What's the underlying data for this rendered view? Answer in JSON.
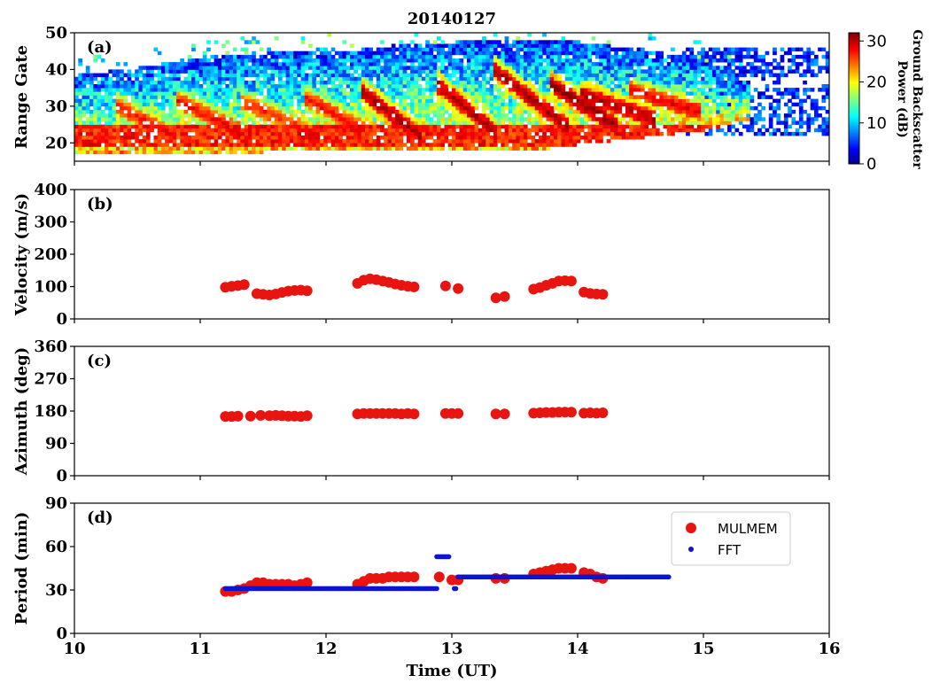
{
  "figure": {
    "title": "20140127",
    "xlabel": "Time (UT)",
    "xticks": [
      "10",
      "11",
      "12",
      "13",
      "14",
      "15",
      "16"
    ],
    "xlim": [
      10,
      16
    ]
  },
  "chart_data": [
    {
      "panel": "(a)",
      "type": "heatmap",
      "ylabel": "Range Gate",
      "ylim": [
        15,
        50
      ],
      "yticks": [
        20,
        30,
        40,
        50
      ],
      "xlim": [
        10,
        16
      ],
      "colorbar": {
        "label_line1": "Ground Backscatter",
        "label_line2": "Power (dB)",
        "range": [
          0,
          32
        ],
        "ticks": [
          0,
          10,
          20,
          30
        ],
        "colormap": "jet"
      },
      "description": "Ground backscatter power (dB) vs time and range gate; values estimated from color",
      "features": {
        "bottom_band": {
          "t_start": 10.0,
          "t_end": 15.1,
          "gate_low": 19,
          "gate_high": 24,
          "power_db": 30
        },
        "coverage": [
          {
            "t": 10.0,
            "gate_low": 17,
            "gate_high": 38
          },
          {
            "t": 10.5,
            "gate_low": 17,
            "gate_high": 40
          },
          {
            "t": 11.0,
            "gate_low": 17,
            "gate_high": 43
          },
          {
            "t": 11.5,
            "gate_low": 17,
            "gate_high": 44
          },
          {
            "t": 12.0,
            "gate_low": 18,
            "gate_high": 44
          },
          {
            "t": 12.5,
            "gate_low": 18,
            "gate_high": 46
          },
          {
            "t": 13.0,
            "gate_low": 18,
            "gate_high": 47
          },
          {
            "t": 13.5,
            "gate_low": 17,
            "gate_high": 47
          },
          {
            "t": 14.0,
            "gate_low": 19,
            "gate_high": 47
          },
          {
            "t": 14.5,
            "gate_low": 21,
            "gate_high": 45
          },
          {
            "t": 15.0,
            "gate_low": 23,
            "gate_high": 42
          },
          {
            "t": 15.3,
            "gate_low": 26,
            "gate_high": 36
          }
        ],
        "tilted_streaks": [
          {
            "t0": 10.3,
            "g0": 30,
            "t1": 10.8,
            "g1": 21,
            "power_db": 28
          },
          {
            "t0": 10.8,
            "g0": 31,
            "t1": 11.4,
            "g1": 21,
            "power_db": 28
          },
          {
            "t0": 11.3,
            "g0": 31,
            "t1": 11.9,
            "g1": 22,
            "power_db": 27
          },
          {
            "t0": 11.8,
            "g0": 32,
            "t1": 12.3,
            "g1": 23,
            "power_db": 28
          },
          {
            "t0": 12.25,
            "g0": 34,
            "t1": 12.75,
            "g1": 21,
            "power_db": 31
          },
          {
            "t0": 12.85,
            "g0": 36,
            "t1": 13.35,
            "g1": 22,
            "power_db": 31
          },
          {
            "t0": 13.3,
            "g0": 40,
            "t1": 13.9,
            "g1": 24,
            "power_db": 31
          },
          {
            "t0": 13.75,
            "g0": 36,
            "t1": 14.3,
            "g1": 24,
            "power_db": 32
          },
          {
            "t0": 14.0,
            "g0": 33,
            "t1": 14.6,
            "g1": 26,
            "power_db": 31
          },
          {
            "t0": 14.4,
            "g0": 34,
            "t1": 14.95,
            "g1": 28,
            "power_db": 29
          }
        ],
        "low_power_region": {
          "t_start": 14.8,
          "t_end": 16.0,
          "gate_low": 22,
          "gate_high": 45,
          "power_db": 4
        }
      }
    },
    {
      "panel": "(b)",
      "type": "scatter",
      "ylabel": "Velocity (m/s)",
      "ylim": [
        0,
        400
      ],
      "yticks": [
        0,
        100,
        200,
        300,
        400
      ],
      "series": [
        {
          "color": "#e8140f",
          "x": [
            11.2,
            11.25,
            11.3,
            11.35,
            11.45,
            11.5,
            11.55,
            11.6,
            11.65,
            11.7,
            11.75,
            11.8,
            11.85,
            12.25,
            12.3,
            12.35,
            12.4,
            12.45,
            12.5,
            12.55,
            12.6,
            12.65,
            12.7,
            12.95,
            13.05,
            13.35,
            13.42,
            13.65,
            13.7,
            13.75,
            13.8,
            13.85,
            13.9,
            13.95,
            14.05,
            14.1,
            14.15,
            14.2
          ],
          "y": [
            98,
            101,
            103,
            106,
            78,
            76,
            74,
            77,
            82,
            86,
            88,
            89,
            87,
            110,
            120,
            124,
            121,
            117,
            113,
            108,
            104,
            101,
            99,
            102,
            94,
            65,
            69,
            92,
            97,
            104,
            110,
            117,
            118,
            117,
            83,
            79,
            77,
            76
          ]
        }
      ]
    },
    {
      "panel": "(c)",
      "type": "scatter",
      "ylabel": "Azimuth (deg)",
      "ylim": [
        0,
        360
      ],
      "yticks": [
        0,
        90,
        180,
        270,
        360
      ],
      "series": [
        {
          "color": "#e8140f",
          "x": [
            11.2,
            11.25,
            11.3,
            11.4,
            11.48,
            11.55,
            11.6,
            11.65,
            11.7,
            11.75,
            11.8,
            11.85,
            12.25,
            12.3,
            12.35,
            12.4,
            12.45,
            12.5,
            12.55,
            12.6,
            12.65,
            12.7,
            12.95,
            13.0,
            13.05,
            13.35,
            13.42,
            13.65,
            13.7,
            13.75,
            13.8,
            13.85,
            13.9,
            13.95,
            14.05,
            14.1,
            14.15,
            14.2
          ],
          "y": [
            165,
            165,
            166,
            166,
            168,
            167,
            168,
            167,
            166,
            166,
            165,
            167,
            172,
            173,
            173,
            173,
            173,
            173,
            173,
            172,
            173,
            172,
            173,
            173,
            173,
            172,
            172,
            174,
            175,
            176,
            176,
            177,
            177,
            177,
            174,
            175,
            174,
            175
          ]
        }
      ]
    },
    {
      "panel": "(d)",
      "type": "scatter",
      "ylabel": "Period (min)",
      "ylim": [
        0,
        90
      ],
      "yticks": [
        0,
        30,
        60,
        90
      ],
      "legend": {
        "position": "top-right",
        "entries": [
          "MULMEM",
          "FFT"
        ]
      },
      "series": [
        {
          "name": "MULMEM",
          "color": "#e8140f",
          "x": [
            11.2,
            11.25,
            11.3,
            11.35,
            11.4,
            11.45,
            11.5,
            11.55,
            11.6,
            11.65,
            11.7,
            11.75,
            11.8,
            11.85,
            12.25,
            12.3,
            12.35,
            12.4,
            12.45,
            12.5,
            12.55,
            12.6,
            12.65,
            12.7,
            12.9,
            13.0,
            13.05,
            13.35,
            13.42,
            13.65,
            13.7,
            13.75,
            13.8,
            13.85,
            13.9,
            13.95,
            14.05,
            14.1,
            14.15,
            14.2
          ],
          "y": [
            29,
            29,
            30,
            31,
            33,
            35,
            35,
            34,
            34,
            34,
            34,
            33,
            34,
            35,
            34,
            36,
            38,
            38,
            38,
            39,
            39,
            39,
            39,
            39,
            39,
            37,
            37,
            38,
            38,
            41,
            42,
            43,
            44,
            45,
            45,
            45,
            42,
            41,
            39,
            38
          ]
        },
        {
          "name": "FFT",
          "color": "#0a14d2",
          "segments": [
            {
              "x_start": 11.2,
              "x_end": 12.88,
              "y": 31
            },
            {
              "x_start": 12.88,
              "x_end": 12.98,
              "y": 53
            },
            {
              "x_start": 13.02,
              "x_end": 13.04,
              "y": 31
            },
            {
              "x_start": 13.05,
              "x_end": 13.62,
              "y": 39
            },
            {
              "x_start": 13.62,
              "x_end": 14.73,
              "y": 39
            }
          ]
        }
      ]
    }
  ]
}
